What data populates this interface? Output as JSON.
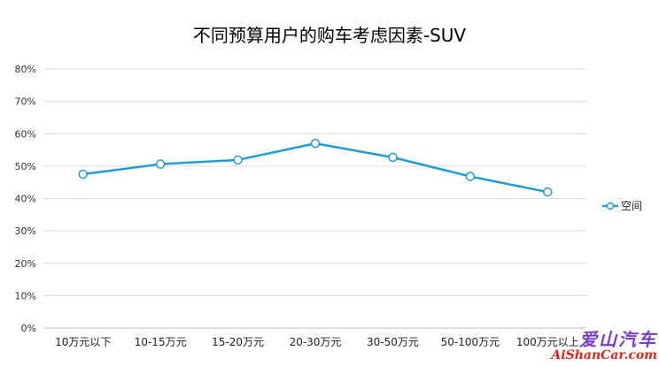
{
  "chart_data": {
    "type": "line",
    "title": "不同预算用户的购车考虑因素-SUV",
    "categories": [
      "10万元以下",
      "10-15万元",
      "15-20万元",
      "20-30万元",
      "30-50万元",
      "50-100万元",
      "100万元以上"
    ],
    "series": [
      {
        "name": "空间",
        "values": [
          47.5,
          50.6,
          51.9,
          57.0,
          52.7,
          46.8,
          42.0
        ]
      }
    ],
    "ylim": [
      0,
      80
    ],
    "yticks": [
      "0%",
      "10%",
      "20%",
      "30%",
      "40%",
      "50%",
      "60%",
      "70%",
      "80%"
    ],
    "xlabel": "",
    "ylabel": "",
    "grid": true,
    "legend": "right",
    "colors": {
      "series": "#1f9bd7",
      "marker_fill": "#ffffff"
    }
  },
  "watermark": {
    "cn": "爱山汽车",
    "en": "AiShanCar.com"
  }
}
